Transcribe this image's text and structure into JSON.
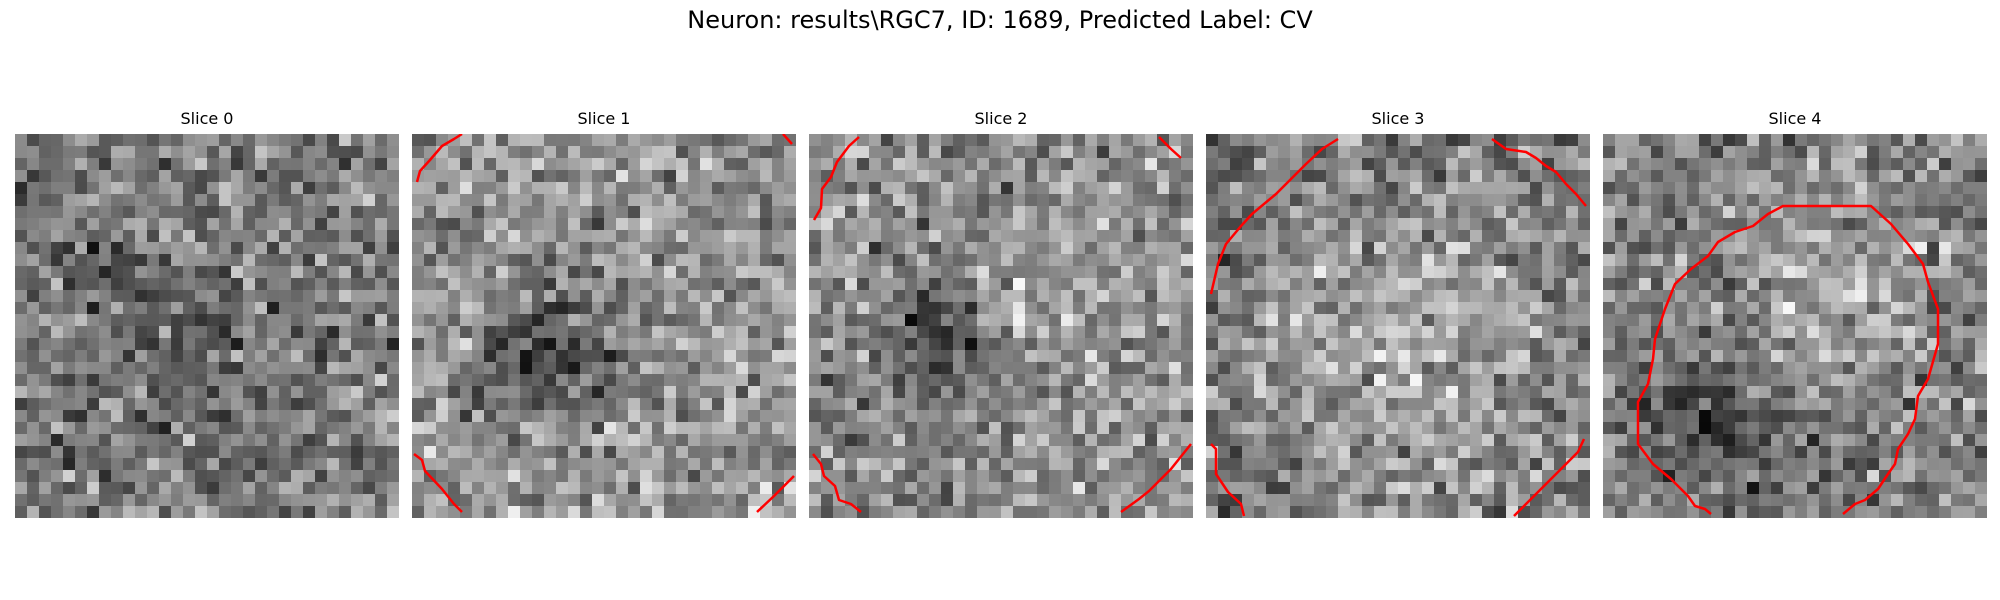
{
  "figure": {
    "title": "Neuron: results\\RGC7, ID: 1689, Predicted Label: CV"
  },
  "panels": [
    {
      "title": "Slice 0",
      "contour_color": "#ff0000",
      "has_contour": false
    },
    {
      "title": "Slice 1",
      "contour_color": "#ff0000",
      "has_contour": true
    },
    {
      "title": "Slice 2",
      "contour_color": "#ff0000",
      "has_contour": true
    },
    {
      "title": "Slice 3",
      "contour_color": "#ff0000",
      "has_contour": true
    },
    {
      "title": "Slice 4",
      "contour_color": "#ff0000",
      "has_contour": true
    }
  ]
}
